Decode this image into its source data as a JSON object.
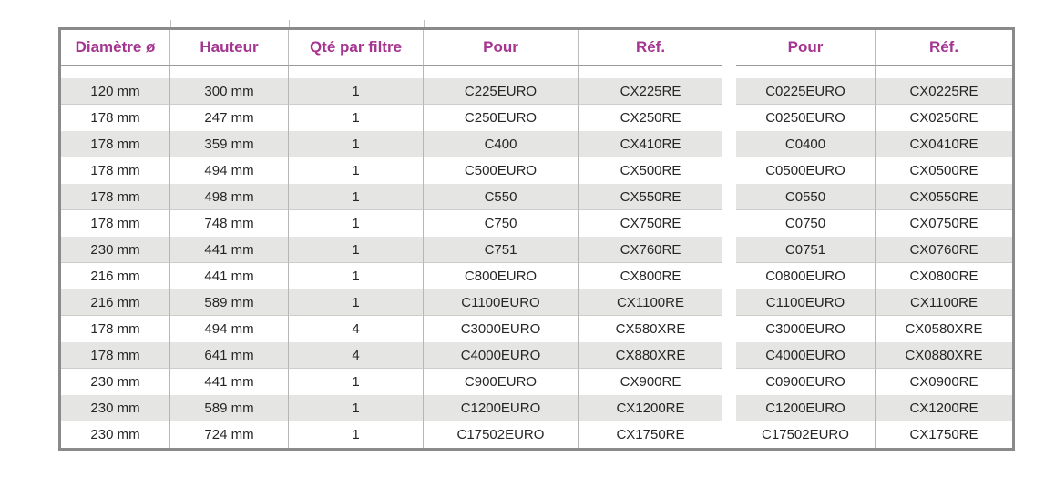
{
  "page": {
    "background": "#ffffff"
  },
  "table": {
    "headers": [
      "Diamètre ø",
      "Hauteur",
      "Qté par filtre",
      "Pour",
      "Réf.",
      "Pour",
      "Réf."
    ],
    "rows": [
      [
        "120 mm",
        "300 mm",
        "1",
        "C225EURO",
        "CX225RE",
        "C0225EURO",
        "CX0225RE"
      ],
      [
        "178 mm",
        "247 mm",
        "1",
        "C250EURO",
        "CX250RE",
        "C0250EURO",
        "CX0250RE"
      ],
      [
        "178 mm",
        "359 mm",
        "1",
        "C400",
        "CX410RE",
        "C0400",
        "CX0410RE"
      ],
      [
        "178 mm",
        "494 mm",
        "1",
        "C500EURO",
        "CX500RE",
        "C0500EURO",
        "CX0500RE"
      ],
      [
        "178 mm",
        "498 mm",
        "1",
        "C550",
        "CX550RE",
        "C0550",
        "CX0550RE"
      ],
      [
        "178 mm",
        "748 mm",
        "1",
        "C750",
        "CX750RE",
        "C0750",
        "CX0750RE"
      ],
      [
        "230 mm",
        "441 mm",
        "1",
        "C751",
        "CX760RE",
        "C0751",
        "CX0760RE"
      ],
      [
        "216 mm",
        "441 mm",
        "1",
        "C800EURO",
        "CX800RE",
        "C0800EURO",
        "CX0800RE"
      ],
      [
        "216 mm",
        "589 mm",
        "1",
        "C1100EURO",
        "CX1100RE",
        "C1100EURO",
        "CX1100RE"
      ],
      [
        "178 mm",
        "494 mm",
        "4",
        "C3000EURO",
        "CX580XRE",
        "C3000EURO",
        "CX0580XRE"
      ],
      [
        "178 mm",
        "641 mm",
        "4",
        "C4000EURO",
        "CX880XRE",
        "C4000EURO",
        "CX0880XRE"
      ],
      [
        "230 mm",
        "441 mm",
        "1",
        "C900EURO",
        "CX900RE",
        "C0900EURO",
        "CX0900RE"
      ],
      [
        "230 mm",
        "589 mm",
        "1",
        "C1200EURO",
        "CX1200RE",
        "C1200EURO",
        "CX1200RE"
      ],
      [
        "230 mm",
        "724 mm",
        "1",
        "C17502EURO",
        "CX1750RE",
        "C17502EURO",
        "CX1750RE"
      ]
    ]
  },
  "colors": {
    "header_text": "#a43590",
    "row_alt_bg": "#e5e5e3",
    "outer_border": "#8a8a8a",
    "separator": "#b6b6b6",
    "body_text": "#262626"
  }
}
